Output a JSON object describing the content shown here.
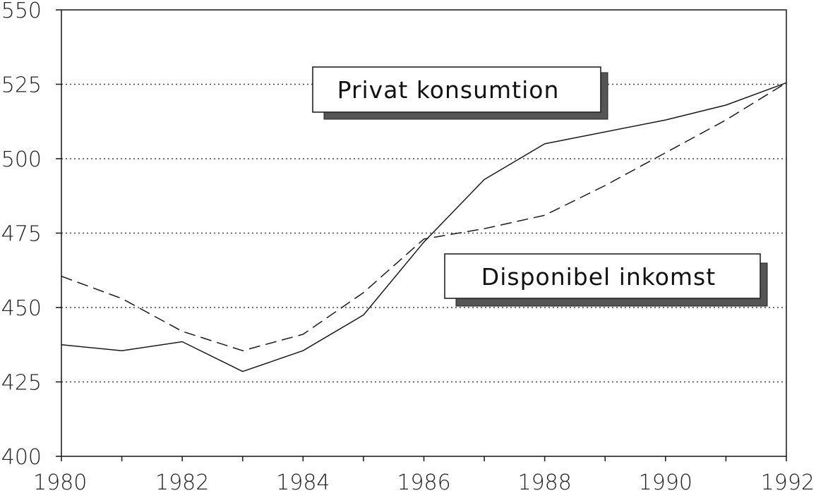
{
  "chart_data": {
    "type": "line",
    "title": "",
    "xlabel": "",
    "ylabel": "",
    "xlim": [
      1980,
      1992
    ],
    "ylim": [
      400,
      550
    ],
    "x_ticks": [
      "1980",
      "1982",
      "1984",
      "1986",
      "1988",
      "1990",
      "1992"
    ],
    "y_ticks": [
      "550",
      "525",
      "500",
      "475",
      "450",
      "425",
      "400"
    ],
    "grid": "horizontal dotted",
    "x": [
      1980,
      1981,
      1982,
      1983,
      1984,
      1985,
      1986,
      1987,
      1988,
      1989,
      1990,
      1991,
      1992
    ],
    "series": [
      {
        "name": "Privat konsumtion",
        "style": "solid",
        "values": [
          437.5,
          435.5,
          438.5,
          428.5,
          435.5,
          447.5,
          472,
          493,
          505,
          509,
          513,
          518,
          525.5
        ]
      },
      {
        "name": "Disponibel inkomst",
        "style": "dashed",
        "values": [
          460.5,
          453,
          442,
          435.5,
          441,
          455,
          473,
          476.5,
          481,
          491,
          502,
          513,
          525.5
        ]
      }
    ]
  }
}
